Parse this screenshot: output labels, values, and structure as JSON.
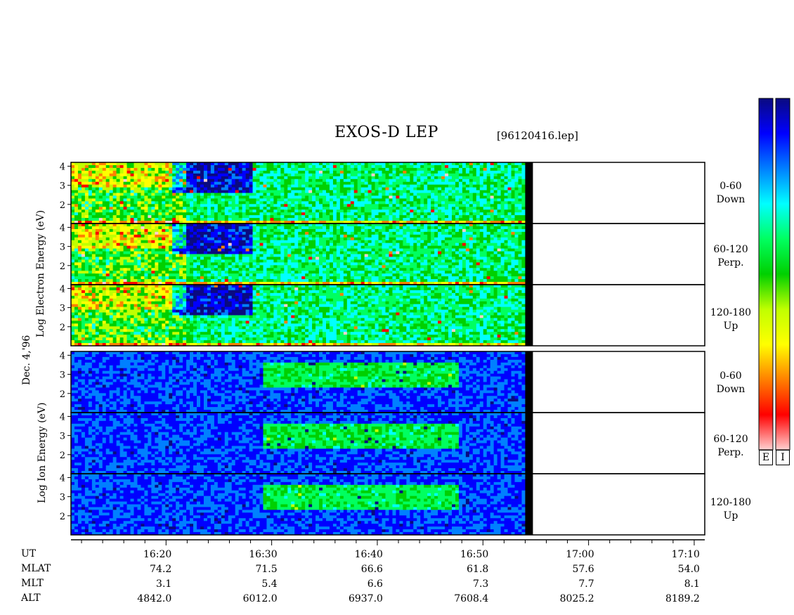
{
  "chart_data": {
    "type": "heatmap",
    "title": "EXOS-D LEP",
    "filename": "[96120416.lep]",
    "date_label": "Dec. 4,'96",
    "groups": [
      {
        "name": "Electron",
        "ylabel": "Log Electron Energy (eV)",
        "ylabel_words": [
          "Log",
          "Electron",
          "Energy",
          "(eV)"
        ],
        "panels": [
          {
            "label_line1": "0-60",
            "label_line2": "Down"
          },
          {
            "label_line1": "60-120",
            "label_line2": "Perp."
          },
          {
            "label_line1": "120-180",
            "label_line2": "Up"
          }
        ]
      },
      {
        "name": "Ion",
        "ylabel": "Log Ion Energy (eV)",
        "ylabel_words": [
          "Log",
          "Ion",
          "Energy",
          "(eV)"
        ],
        "panels": [
          {
            "label_line1": "0-60",
            "label_line2": "Down"
          },
          {
            "label_line1": "60-120",
            "label_line2": "Perp."
          },
          {
            "label_line1": "120-180",
            "label_line2": "Up"
          }
        ]
      }
    ],
    "y_ticks": [
      "4",
      "3",
      "2"
    ],
    "ylim": [
      1,
      4.2
    ],
    "x_axis": {
      "xlim": [
        "16:11",
        "17:11"
      ],
      "data_end": "16:54",
      "tick_labels": [
        "16:20",
        "16:30",
        "16:40",
        "16:50",
        "17:00",
        "17:10"
      ]
    },
    "ephemeris": {
      "labels": [
        "UT",
        "MLAT",
        "MLT",
        "ALT"
      ],
      "MLAT": [
        "74.2",
        "71.5",
        "66.6",
        "61.8",
        "57.6",
        "54.0"
      ],
      "MLT": [
        "3.1",
        "5.4",
        "6.6",
        "7.3",
        "7.7",
        "8.1"
      ],
      "ALT": [
        "4842.0",
        "6012.0",
        "6937.0",
        "7608.4",
        "8025.2",
        "8189.2"
      ]
    },
    "colorbar": {
      "labels": [
        "E",
        "I"
      ],
      "colormap": [
        "#0a0a80",
        "#0000ff",
        "#0080ff",
        "#00ffff",
        "#00ff60",
        "#00d000",
        "#c0ff00",
        "#ffff00",
        "#ff8000",
        "#ff0000",
        "#ffd0d0"
      ]
    }
  }
}
